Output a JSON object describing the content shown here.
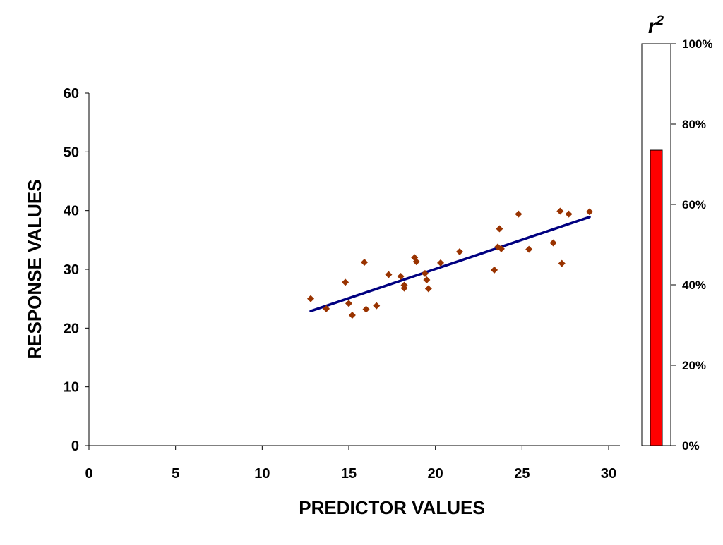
{
  "chart_data": [
    {
      "type": "scatter",
      "xlabel": "PREDICTOR VALUES",
      "ylabel": "RESPONSE VALUES",
      "xlim": [
        0,
        30
      ],
      "ylim": [
        0,
        60
      ],
      "xticks": [
        "0",
        "5",
        "10",
        "15",
        "20",
        "25",
        "30"
      ],
      "yticks": [
        "0",
        "10",
        "20",
        "30",
        "40",
        "50",
        "60"
      ],
      "grid": false,
      "colors": {
        "points": "#993300",
        "fit": "#000080",
        "axis": "#000000"
      },
      "points": [
        {
          "x": 12.8,
          "y": 25.0
        },
        {
          "x": 13.7,
          "y": 23.3
        },
        {
          "x": 14.8,
          "y": 27.8
        },
        {
          "x": 15.0,
          "y": 24.2
        },
        {
          "x": 15.2,
          "y": 22.2
        },
        {
          "x": 15.9,
          "y": 31.2
        },
        {
          "x": 16.0,
          "y": 23.2
        },
        {
          "x": 16.6,
          "y": 23.8
        },
        {
          "x": 17.3,
          "y": 29.1
        },
        {
          "x": 18.0,
          "y": 28.8
        },
        {
          "x": 18.2,
          "y": 27.3
        },
        {
          "x": 18.2,
          "y": 26.8
        },
        {
          "x": 18.8,
          "y": 32.0
        },
        {
          "x": 18.9,
          "y": 31.3
        },
        {
          "x": 19.4,
          "y": 29.3
        },
        {
          "x": 19.5,
          "y": 28.2
        },
        {
          "x": 19.6,
          "y": 26.7
        },
        {
          "x": 20.3,
          "y": 31.1
        },
        {
          "x": 21.4,
          "y": 33.0
        },
        {
          "x": 23.4,
          "y": 29.9
        },
        {
          "x": 23.6,
          "y": 33.8
        },
        {
          "x": 23.7,
          "y": 36.9
        },
        {
          "x": 23.8,
          "y": 33.5
        },
        {
          "x": 24.8,
          "y": 39.4
        },
        {
          "x": 25.4,
          "y": 33.4
        },
        {
          "x": 26.8,
          "y": 34.5
        },
        {
          "x": 27.2,
          "y": 39.9
        },
        {
          "x": 27.3,
          "y": 31.0
        },
        {
          "x": 27.7,
          "y": 39.4
        },
        {
          "x": 28.9,
          "y": 39.8
        }
      ],
      "fit_line": {
        "x": [
          12.8,
          28.9
        ],
        "y": [
          22.9,
          38.9
        ]
      }
    },
    {
      "type": "bar",
      "title": "r",
      "title_superscript": "2",
      "orientation": "vertical-gauge",
      "ylim": [
        0,
        100
      ],
      "yticks": [
        "0%",
        "20%",
        "40%",
        "60%",
        "80%",
        "100%"
      ],
      "values": [
        73.5
      ],
      "colors": {
        "bar": "#ff0000",
        "bar_outline": "#000000",
        "frame": "#000000"
      }
    }
  ]
}
